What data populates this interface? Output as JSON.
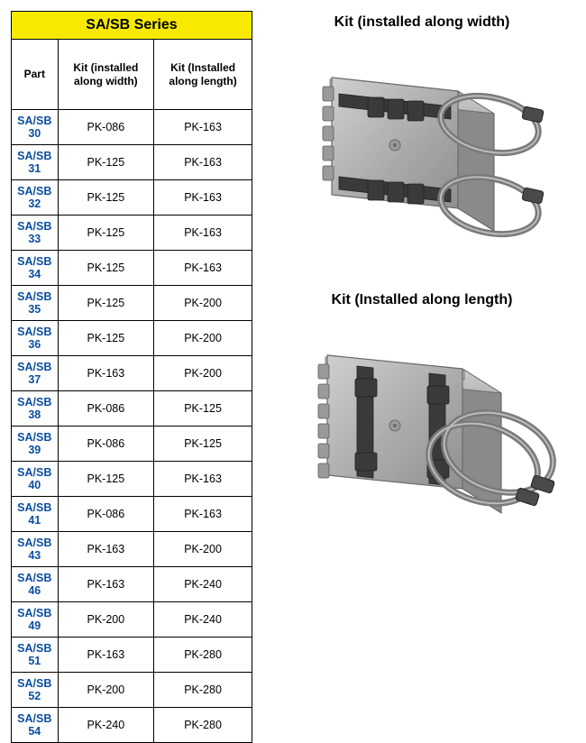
{
  "table": {
    "series_title": "SA/SB Series",
    "columns": [
      "Part",
      "Kit (installed along width)",
      "Kit (Installed along length)"
    ],
    "col_widths": [
      "33%",
      "34%",
      "33%"
    ],
    "rows": [
      {
        "part": "SA/SB 30",
        "kit_w": "PK-086",
        "kit_l": "PK-163"
      },
      {
        "part": "SA/SB 31",
        "kit_w": "PK-125",
        "kit_l": "PK-163"
      },
      {
        "part": "SA/SB 32",
        "kit_w": "PK-125",
        "kit_l": "PK-163"
      },
      {
        "part": "SA/SB 33",
        "kit_w": "PK-125",
        "kit_l": "PK-163"
      },
      {
        "part": "SA/SB 34",
        "kit_w": "PK-125",
        "kit_l": "PK-163"
      },
      {
        "part": "SA/SB 35",
        "kit_w": "PK-125",
        "kit_l": "PK-200"
      },
      {
        "part": "SA/SB 36",
        "kit_w": "PK-125",
        "kit_l": "PK-200"
      },
      {
        "part": "SA/SB 37",
        "kit_w": "PK-163",
        "kit_l": "PK-200"
      },
      {
        "part": "SA/SB 38",
        "kit_w": "PK-086",
        "kit_l": "PK-125"
      },
      {
        "part": "SA/SB 39",
        "kit_w": "PK-086",
        "kit_l": "PK-125"
      },
      {
        "part": "SA/SB 40",
        "kit_w": "PK-125",
        "kit_l": "PK-163"
      },
      {
        "part": "SA/SB 41",
        "kit_w": "PK-086",
        "kit_l": "PK-163"
      },
      {
        "part": "SA/SB 43",
        "kit_w": "PK-163",
        "kit_l": "PK-200"
      },
      {
        "part": "SA/SB 46",
        "kit_w": "PK-163",
        "kit_l": "PK-240"
      },
      {
        "part": "SA/SB 49",
        "kit_w": "PK-200",
        "kit_l": "PK-240"
      },
      {
        "part": "SA/SB 51",
        "kit_w": "PK-163",
        "kit_l": "PK-280"
      },
      {
        "part": "SA/SB 52",
        "kit_w": "PK-200",
        "kit_l": "PK-280"
      },
      {
        "part": "SA/SB 54",
        "kit_w": "PK-240",
        "kit_l": "PK-280"
      }
    ],
    "header_bg": "#f7ea00",
    "border_color": "#000000",
    "part_color": "#0b4fa0"
  },
  "figures": {
    "top_title": "Kit (installed along width)",
    "bottom_title": "Kit (Installed along length)",
    "title_fontsize": 16,
    "enclosure": {
      "body_fill": "#b0b0b0",
      "body_stroke": "#6a6a6a",
      "lid_fill": "#c2c2c2",
      "hinge_fill": "#9a9a9a",
      "bracket_fill": "#3a3a3a",
      "clamp_ring_stroke": "#7a7a7a",
      "clamp_ring_width": 7,
      "shadow": "#8a8a8a"
    }
  }
}
